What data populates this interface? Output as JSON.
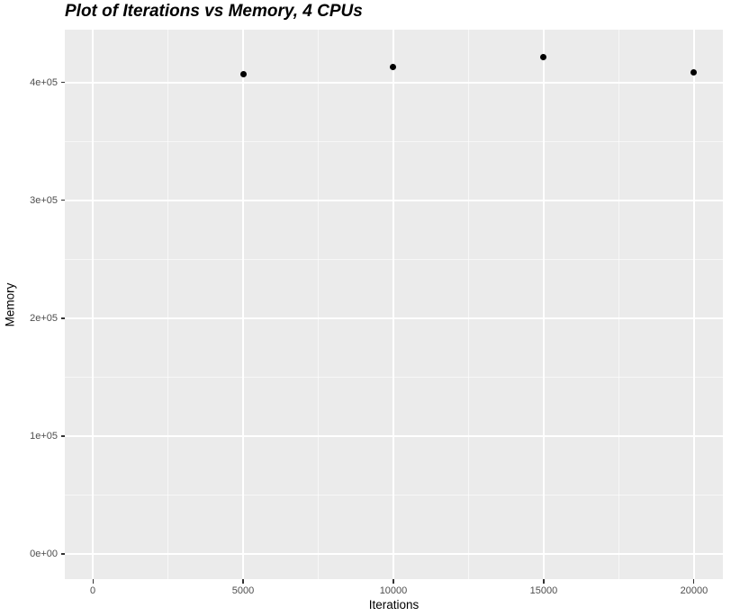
{
  "chart_data": {
    "type": "scatter",
    "title": "Plot of Iterations vs Memory, 4 CPUs",
    "xlabel": "Iterations",
    "ylabel": "Memory",
    "x": [
      5000,
      10000,
      15000,
      20000
    ],
    "y": [
      407000,
      413000,
      421500,
      408500
    ],
    "xlim": [
      -930,
      20960
    ],
    "ylim": [
      -21400,
      445000
    ],
    "x_ticks": {
      "values": [
        0,
        5000,
        10000,
        15000,
        20000
      ],
      "labels": [
        "0",
        "5000",
        "10000",
        "15000",
        "20000"
      ]
    },
    "y_ticks": {
      "values": [
        0,
        100000,
        200000,
        300000,
        400000
      ],
      "labels": [
        "0e+00",
        "1e+05",
        "2e+05",
        "3e+05",
        "4e+05"
      ]
    },
    "x_minor": [
      2500,
      7500,
      12500,
      17500
    ],
    "y_minor": [
      50000,
      150000,
      250000,
      350000
    ],
    "grid": "on",
    "legend": "none",
    "colors": {
      "panel_background": "#EBEBEB",
      "grid_major": "#FFFFFF",
      "grid_minor": "#FFFFFF",
      "point": "#000000",
      "tick_mark": "#333333",
      "tick_text": "#4D4D4D",
      "title_text": "#000000",
      "figure_background": "#FFFFFF"
    }
  }
}
